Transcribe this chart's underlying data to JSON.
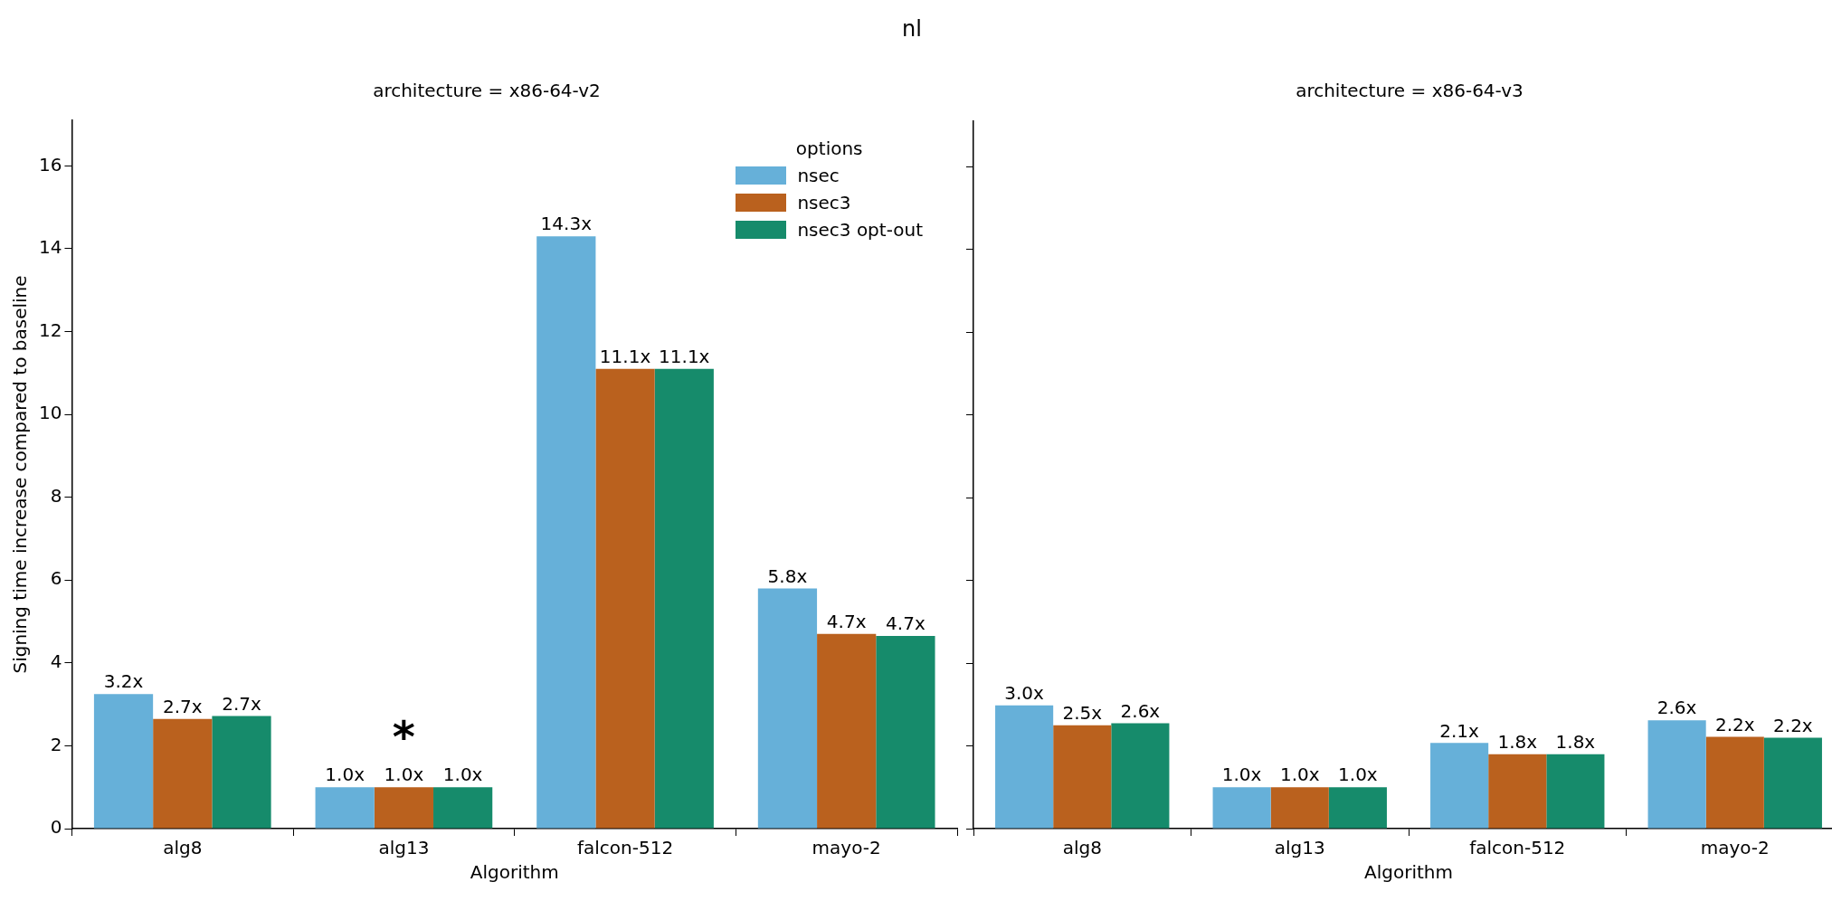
{
  "chart_data": [
    {
      "type": "bar",
      "title": "nl",
      "subtitle": "architecture = x86-64-v2",
      "xlabel": "Algorithm",
      "ylabel": "Signing time increase compared to baseline",
      "legend_title": "options",
      "legend": "top right",
      "grid": false,
      "categories": [
        "alg8",
        "alg13",
        "falcon-512",
        "mayo-2"
      ],
      "ylim": [
        0,
        17.1
      ],
      "yticks": [
        0,
        2,
        4,
        6,
        8,
        10,
        12,
        14,
        16
      ],
      "series": [
        {
          "name": "nsec",
          "color": "#66b0d9",
          "values": [
            3.25,
            1.0,
            14.3,
            5.8
          ],
          "value_labels": [
            "3.2x",
            "1.0x",
            "14.3x",
            "5.8x"
          ]
        },
        {
          "name": "nsec3",
          "color": "#ba611e",
          "values": [
            2.65,
            1.0,
            11.1,
            4.7
          ],
          "value_labels": [
            "2.7x",
            "1.0x",
            "11.1x",
            "4.7x"
          ]
        },
        {
          "name": "nsec3 opt-out",
          "color": "#168b6b",
          "values": [
            2.72,
            1.0,
            11.1,
            4.65
          ],
          "value_labels": [
            "2.7x",
            "1.0x",
            "11.1x",
            "4.7x"
          ]
        }
      ],
      "annotations": [
        "*"
      ]
    },
    {
      "type": "bar",
      "subtitle": "architecture = x86-64-v3",
      "xlabel": "Algorithm",
      "legend": false,
      "grid": false,
      "tick_labels": "x",
      "categories": [
        "alg8",
        "alg13",
        "falcon-512",
        "mayo-2"
      ],
      "ylim": [
        0,
        17.1
      ],
      "yticks": [
        0,
        2,
        4,
        6,
        8,
        10,
        12,
        14,
        16
      ],
      "series": [
        {
          "color": "#66b0d9",
          "values": [
            2.98,
            1.0,
            2.07,
            2.62
          ],
          "value_labels": [
            "3.0x",
            "1.0x",
            "2.1x",
            "2.6x"
          ]
        },
        {
          "color": "#ba611e",
          "values": [
            2.5,
            1.0,
            1.8,
            2.22
          ],
          "value_labels": [
            "2.5x",
            "1.0x",
            "1.8x",
            "2.2x"
          ]
        },
        {
          "color": "#168b6b",
          "values": [
            2.55,
            1.0,
            1.8,
            2.2
          ],
          "value_labels": [
            "2.6x",
            "1.0x",
            "1.8x",
            "2.2x"
          ]
        }
      ]
    }
  ]
}
